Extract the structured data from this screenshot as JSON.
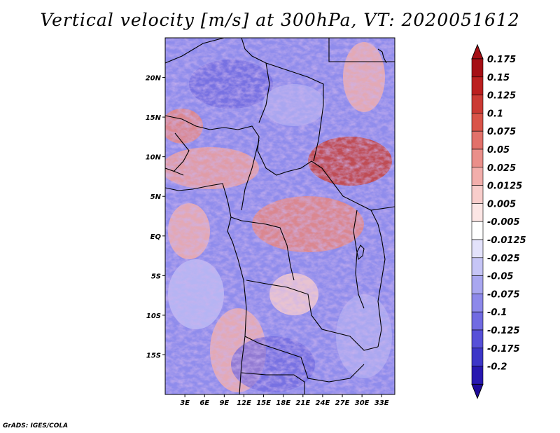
{
  "title": "Vertical velocity [m/s] at 300hPa, VT: 2020051612",
  "credit": "GrADS: IGES/COLA",
  "map": {
    "lon_range": [
      0,
      35
    ],
    "lat_range": [
      -20,
      25
    ],
    "lat_labels": [
      {
        "lat": 20,
        "text": "20N"
      },
      {
        "lat": 15,
        "text": "15N"
      },
      {
        "lat": 10,
        "text": "10N"
      },
      {
        "lat": 5,
        "text": "5N"
      },
      {
        "lat": 0,
        "text": "EQ"
      },
      {
        "lat": -5,
        "text": "5S"
      },
      {
        "lat": -10,
        "text": "10S"
      },
      {
        "lat": -15,
        "text": "15S"
      }
    ],
    "lon_labels": [
      {
        "lon": 3,
        "text": "3E"
      },
      {
        "lon": 6,
        "text": "6E"
      },
      {
        "lon": 9,
        "text": "9E"
      },
      {
        "lon": 12,
        "text": "12E"
      },
      {
        "lon": 15,
        "text": "15E"
      },
      {
        "lon": 18,
        "text": "18E"
      },
      {
        "lon": 21,
        "text": "21E"
      },
      {
        "lon": 24,
        "text": "24E"
      },
      {
        "lon": 27,
        "text": "27E"
      },
      {
        "lon": 30,
        "text": "30E"
      },
      {
        "lon": 33,
        "text": "33E"
      }
    ]
  },
  "colorbar": {
    "levels": [
      {
        "label": "0.175",
        "color": "#a50f15"
      },
      {
        "label": "0.15",
        "color": "#bb1f1f"
      },
      {
        "label": "0.125",
        "color": "#cb3a34"
      },
      {
        "label": "0.1",
        "color": "#d95449"
      },
      {
        "label": "0.075",
        "color": "#e2716a"
      },
      {
        "label": "0.05",
        "color": "#ea8f8a"
      },
      {
        "label": "0.025",
        "color": "#f2aeab"
      },
      {
        "label": "0.0125",
        "color": "#f8cdcb"
      },
      {
        "label": "0.005",
        "color": "#fce6e5"
      },
      {
        "label": "-0.005",
        "color": "#ffffff"
      },
      {
        "label": "-0.0125",
        "color": "#e3e2fb"
      },
      {
        "label": "-0.025",
        "color": "#c6c5f6"
      },
      {
        "label": "-0.05",
        "color": "#a9a7f0"
      },
      {
        "label": "-0.075",
        "color": "#8d89ea"
      },
      {
        "label": "-0.1",
        "color": "#716be2"
      },
      {
        "label": "-0.125",
        "color": "#5750d8"
      },
      {
        "label": "-0.175",
        "color": "#3d36c8"
      },
      {
        "label": "-0.2",
        "color": "#2818b0"
      }
    ],
    "top_color": "#a50f15",
    "bottom_color": "#1e0a9a"
  }
}
